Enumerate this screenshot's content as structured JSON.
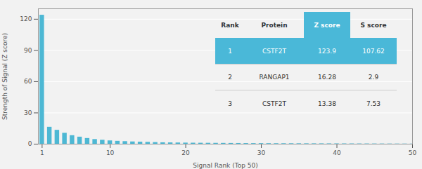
{
  "chart_data": {
    "type": "bar",
    "xlabel": "Signal Rank (Top 50)",
    "ylabel": "Strength of Signal (Z score)",
    "x": [
      1,
      2,
      3,
      4,
      5,
      6,
      7,
      8,
      9,
      10,
      11,
      12,
      13,
      14,
      15,
      16,
      17,
      18,
      19,
      20,
      21,
      22,
      23,
      24,
      25,
      26,
      27,
      28,
      29,
      30,
      31,
      32,
      33,
      34,
      35,
      36,
      37,
      38,
      39,
      40,
      41,
      42,
      43,
      44,
      45,
      46,
      47,
      48,
      49,
      50
    ],
    "values": [
      123.9,
      16.28,
      13.38,
      10.5,
      8.2,
      6.8,
      5.5,
      4.5,
      3.8,
      3.2,
      2.8,
      2.5,
      2.2,
      2.0,
      1.8,
      1.6,
      1.4,
      1.3,
      1.2,
      1.1,
      1.0,
      0.95,
      0.9,
      0.85,
      0.8,
      0.75,
      0.7,
      0.65,
      0.6,
      0.58,
      0.55,
      0.52,
      0.5,
      0.48,
      0.46,
      0.44,
      0.42,
      0.4,
      0.38,
      0.36,
      0.34,
      0.32,
      0.3,
      0.28,
      0.26,
      0.24,
      0.22,
      0.2,
      0.18,
      0.16
    ],
    "color": "#4db8d4",
    "xlim": [
      0.5,
      50
    ],
    "xticks": [
      1,
      10,
      20,
      30,
      40,
      50
    ],
    "ylim": [
      0,
      130
    ],
    "yticks": [
      0,
      30,
      60,
      90,
      120
    ],
    "grid": true,
    "table": {
      "rows": [
        [
          "Rank",
          "Protein",
          "Z score",
          "S score"
        ],
        [
          "1",
          "CSTF2T",
          "123.9",
          "107.62"
        ],
        [
          "2",
          "RANGAP1",
          "16.28",
          "2.9"
        ],
        [
          "3",
          "CSTF2T",
          "13.38",
          "7.53"
        ]
      ],
      "highlight_row": 1,
      "color": "#4ab8d8"
    }
  }
}
